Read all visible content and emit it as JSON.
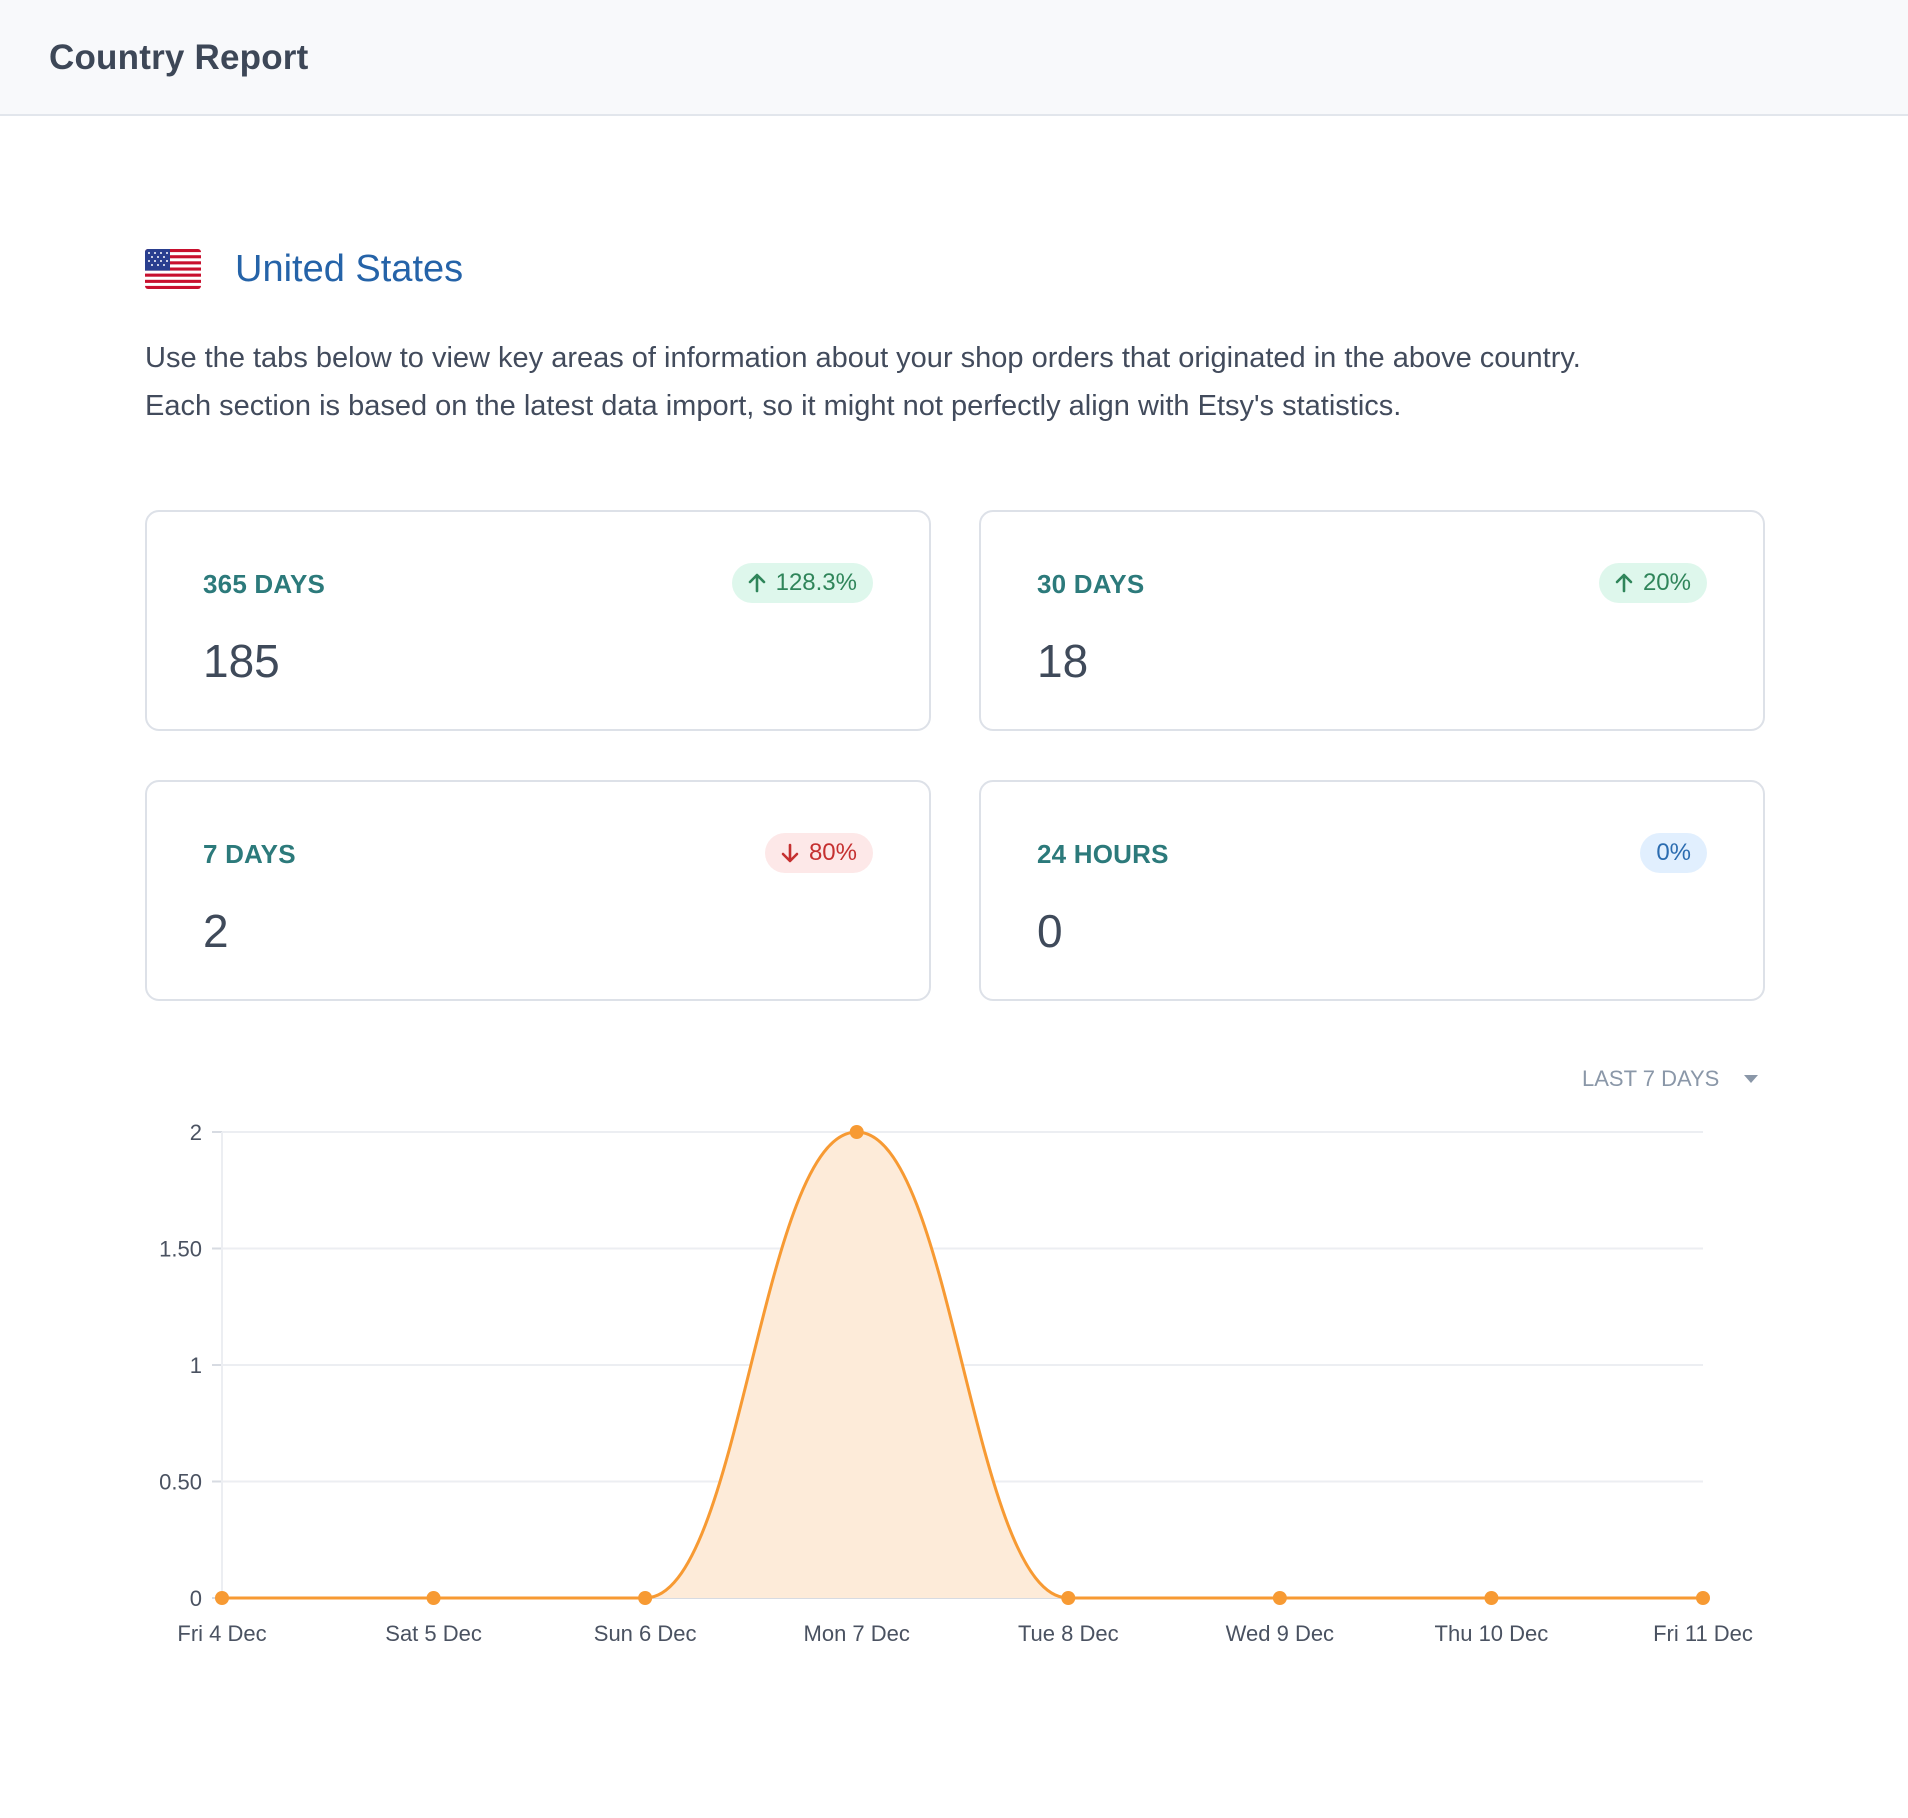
{
  "header": {
    "title": "Country Report"
  },
  "country": {
    "name": "United States",
    "flag_icon": "us-flag-icon"
  },
  "intro": {
    "line1": "Use the tabs below to view key areas of information about your shop orders that originated in the above country.",
    "line2": "Each section is based on the latest data import, so it might not perfectly align with Etsy's statistics."
  },
  "stats": [
    {
      "period": "365 DAYS",
      "value": "185",
      "change": "128.3%",
      "trend": "up"
    },
    {
      "period": "30 DAYS",
      "value": "18",
      "change": "20%",
      "trend": "up"
    },
    {
      "period": "7 DAYS",
      "value": "2",
      "change": "80%",
      "trend": "down"
    },
    {
      "period": "24 HOURS",
      "value": "0",
      "change": "0%",
      "trend": "flat"
    }
  ],
  "range_selector": {
    "label": "LAST 7 DAYS"
  },
  "colors": {
    "accent": "#f79a33",
    "area_fill": "#fdebd9",
    "country_link": "#2563a8",
    "period_label": "#2c7a7b"
  },
  "chart_data": {
    "type": "area",
    "categories": [
      "Fri 4 Dec",
      "Sat 5 Dec",
      "Sun 6 Dec",
      "Mon 7 Dec",
      "Tue 8 Dec",
      "Wed 9 Dec",
      "Thu 10 Dec",
      "Fri 11 Dec"
    ],
    "series": [
      {
        "name": "Orders",
        "values": [
          0,
          0,
          0,
          2,
          0,
          0,
          0,
          0
        ]
      }
    ],
    "yticks": [
      "0",
      "0.50",
      "1",
      "1.50",
      "2"
    ],
    "ytick_values": [
      0,
      0.5,
      1,
      1.5,
      2
    ],
    "ylim": [
      0,
      2
    ],
    "title": "",
    "xlabel": "",
    "ylabel": "",
    "grid": true
  }
}
